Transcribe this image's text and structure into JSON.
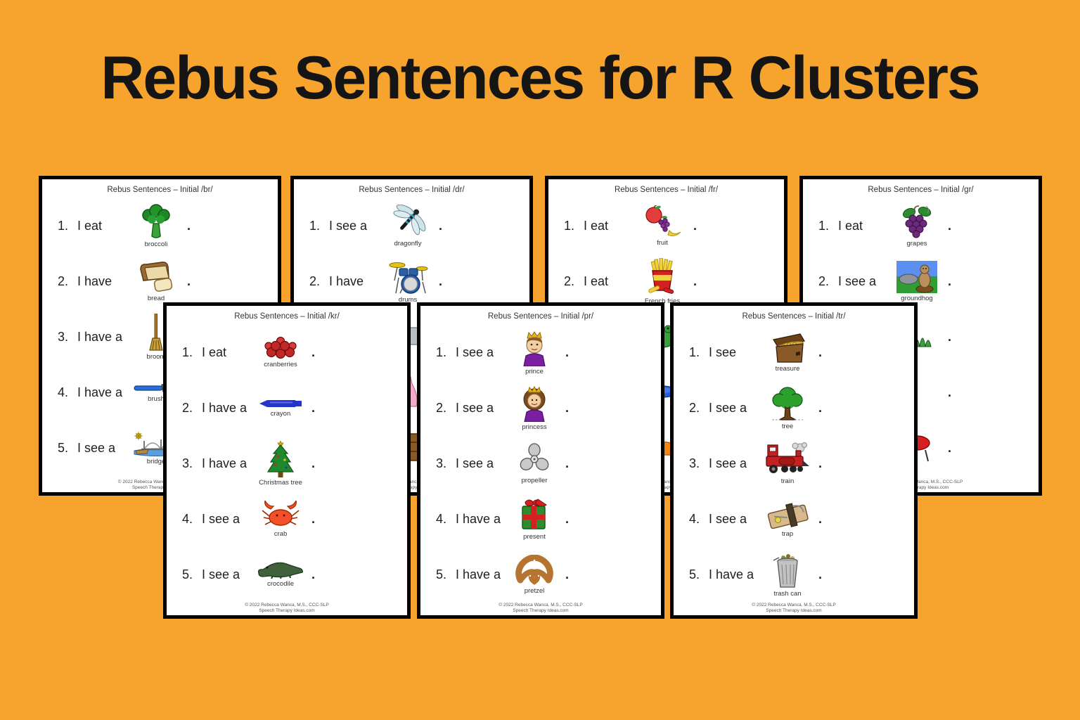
{
  "title": "Rebus Sentences for R Clusters",
  "colors": {
    "background": "#F7A42F",
    "page_border": "#000000",
    "page_background": "#FFFFFF",
    "title_text": "#151515"
  },
  "footer": {
    "line1": "© 2022 Rebecca Wanca, M.S., CCC-SLP",
    "line2": "Speech Therapy Ideas.com"
  },
  "worksheets": [
    {
      "title": "Rebus Sentences – Initial /br/",
      "items": [
        {
          "num": "1.",
          "text": "I eat",
          "icon": "broccoli",
          "caption": "broccoli",
          "period": "."
        },
        {
          "num": "2.",
          "text": "I have",
          "icon": "bread",
          "caption": "bread",
          "period": "."
        },
        {
          "num": "3.",
          "text": "I have a",
          "icon": "broom",
          "caption": "broom",
          "period": "."
        },
        {
          "num": "4.",
          "text": "I have a",
          "icon": "brush",
          "caption": "brush",
          "period": "."
        },
        {
          "num": "5.",
          "text": "I see a",
          "icon": "bridge",
          "caption": "bridge",
          "period": "."
        }
      ]
    },
    {
      "title": "Rebus Sentences – Initial /dr/",
      "items": [
        {
          "num": "1.",
          "text": "I see a",
          "icon": "dragonfly",
          "caption": "dragonfly",
          "period": "."
        },
        {
          "num": "2.",
          "text": "I have",
          "icon": "drums",
          "caption": "drums",
          "period": "."
        },
        {
          "num": "",
          "text": "",
          "icon": "glimpse-gray",
          "caption": "",
          "period": ""
        },
        {
          "num": "",
          "text": "",
          "icon": "glimpse-pink",
          "caption": "",
          "period": ""
        },
        {
          "num": "",
          "text": "",
          "icon": "glimpse-brown",
          "caption": "",
          "period": ""
        }
      ]
    },
    {
      "title": "Rebus Sentences – Initial /fr/",
      "items": [
        {
          "num": "1.",
          "text": "I eat",
          "icon": "fruit",
          "caption": "fruit",
          "period": "."
        },
        {
          "num": "2.",
          "text": "I eat",
          "icon": "french-fries",
          "caption": "French fries",
          "period": "."
        },
        {
          "num": "",
          "text": "",
          "icon": "glimpse-green",
          "caption": "",
          "period": ""
        },
        {
          "num": "",
          "text": "",
          "icon": "glimpse-blue",
          "caption": "",
          "period": ""
        },
        {
          "num": "",
          "text": "",
          "icon": "glimpse-orange",
          "caption": "",
          "period": ""
        }
      ]
    },
    {
      "title": "Rebus Sentences – Initial /gr/",
      "items": [
        {
          "num": "1.",
          "text": "I eat",
          "icon": "grapes",
          "caption": "grapes",
          "period": "."
        },
        {
          "num": "2.",
          "text": "I see a",
          "icon": "groundhog",
          "caption": "groundhog",
          "period": "."
        },
        {
          "num": "",
          "text": "",
          "icon": "glimpse-grass",
          "caption": "",
          "period": "."
        },
        {
          "num": "",
          "text": "",
          "icon": "",
          "caption": "",
          "period": "."
        },
        {
          "num": "",
          "text": "",
          "icon": "glimpse-red",
          "caption": "",
          "period": "."
        }
      ]
    },
    {
      "title": "Rebus Sentences – Initial /kr/",
      "items": [
        {
          "num": "1.",
          "text": "I eat",
          "icon": "cranberries",
          "caption": "cranberries",
          "period": "."
        },
        {
          "num": "2.",
          "text": "I have a",
          "icon": "crayon",
          "caption": "crayon",
          "period": "."
        },
        {
          "num": "3.",
          "text": "I have a",
          "icon": "christmas-tree",
          "caption": "Christmas tree",
          "period": "."
        },
        {
          "num": "4.",
          "text": "I see a",
          "icon": "crab",
          "caption": "crab",
          "period": "."
        },
        {
          "num": "5.",
          "text": "I see a",
          "icon": "crocodile",
          "caption": "crocodile",
          "period": "."
        }
      ]
    },
    {
      "title": "Rebus Sentences – Initial /pr/",
      "items": [
        {
          "num": "1.",
          "text": "I see a",
          "icon": "prince",
          "caption": "prince",
          "period": "."
        },
        {
          "num": "2.",
          "text": "I see a",
          "icon": "princess",
          "caption": "princess",
          "period": "."
        },
        {
          "num": "3.",
          "text": "I see a",
          "icon": "propeller",
          "caption": "propeller",
          "period": "."
        },
        {
          "num": "4.",
          "text": "I have a",
          "icon": "present",
          "caption": "present",
          "period": "."
        },
        {
          "num": "5.",
          "text": "I have a",
          "icon": "pretzel",
          "caption": "pretzel",
          "period": "."
        }
      ]
    },
    {
      "title": "Rebus Sentences – Initial /tr/",
      "items": [
        {
          "num": "1.",
          "text": "I see",
          "icon": "treasure",
          "caption": "treasure",
          "period": "."
        },
        {
          "num": "2.",
          "text": "I see a",
          "icon": "tree",
          "caption": "tree",
          "period": "."
        },
        {
          "num": "3.",
          "text": "I see a",
          "icon": "train",
          "caption": "train",
          "period": "."
        },
        {
          "num": "4.",
          "text": "I see a",
          "icon": "trap",
          "caption": "trap",
          "period": "."
        },
        {
          "num": "5.",
          "text": "I have a",
          "icon": "trash-can",
          "caption": "trash can",
          "period": "."
        }
      ]
    }
  ]
}
